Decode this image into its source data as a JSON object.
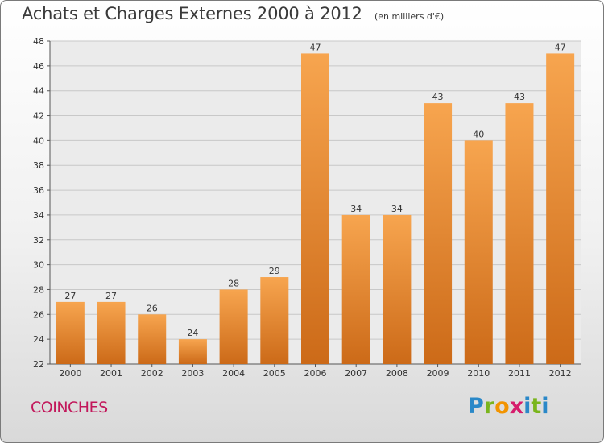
{
  "header": {
    "title": "Achats et Charges Externes 2000 à 2012",
    "subtitle": "(en milliers d'€)"
  },
  "footer": {
    "commune": "COINCHES",
    "brand": "Proxiti"
  },
  "colors": {
    "bar_top": "#f7a54f",
    "bar_bottom": "#cc6a18",
    "grid": "#c8c8c8",
    "commune_text": "#c2185b"
  },
  "chart_data": {
    "type": "bar",
    "categories": [
      "2000",
      "2001",
      "2002",
      "2003",
      "2004",
      "2005",
      "2006",
      "2007",
      "2008",
      "2009",
      "2010",
      "2011",
      "2012"
    ],
    "values": [
      27,
      27,
      26,
      24,
      28,
      29,
      47,
      34,
      34,
      43,
      40,
      43,
      47
    ],
    "ylim": [
      22,
      48
    ],
    "yticks": [
      22,
      24,
      26,
      28,
      30,
      32,
      34,
      36,
      38,
      40,
      42,
      44,
      46,
      48
    ],
    "grid": true,
    "legend": "none"
  }
}
